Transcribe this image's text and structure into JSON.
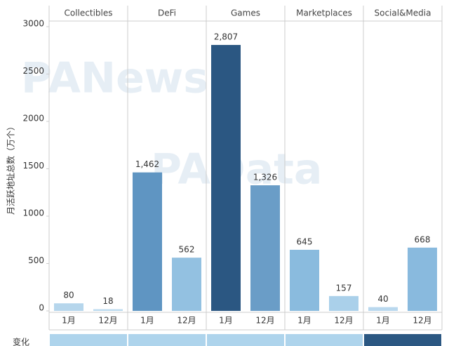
{
  "chart_data": {
    "type": "bar",
    "ylabel": "月活跃地址总数（万个）",
    "months": [
      "1月",
      "12月"
    ],
    "panels": [
      {
        "name": "Collectibles",
        "values": [
          80,
          18
        ],
        "value_labels": [
          "80",
          "18"
        ],
        "colors": [
          "#b6d6ec",
          "#bcdaef"
        ]
      },
      {
        "name": "DeFi",
        "values": [
          1462,
          562
        ],
        "value_labels": [
          "1,462",
          "562"
        ],
        "colors": [
          "#5f95c2",
          "#93c1e1"
        ]
      },
      {
        "name": "Games",
        "values": [
          2807,
          1326
        ],
        "value_labels": [
          "2,807",
          "1,326"
        ],
        "colors": [
          "#2b5782",
          "#6a9dc7"
        ]
      },
      {
        "name": "Marketplaces",
        "values": [
          645,
          157
        ],
        "value_labels": [
          "645",
          "157"
        ],
        "colors": [
          "#8abbde",
          "#aad0ea"
        ]
      },
      {
        "name": "Social&Media",
        "values": [
          40,
          668
        ],
        "value_labels": [
          "40",
          "668"
        ],
        "colors": [
          "#b9d8ee",
          "#89bade"
        ]
      }
    ],
    "ylim": [
      0,
      3000
    ],
    "yticks": [
      0,
      500,
      1000,
      1500,
      2000,
      2500,
      3000
    ],
    "row_label": "变化",
    "watermarks": [
      "PANews",
      "PAData"
    ]
  }
}
